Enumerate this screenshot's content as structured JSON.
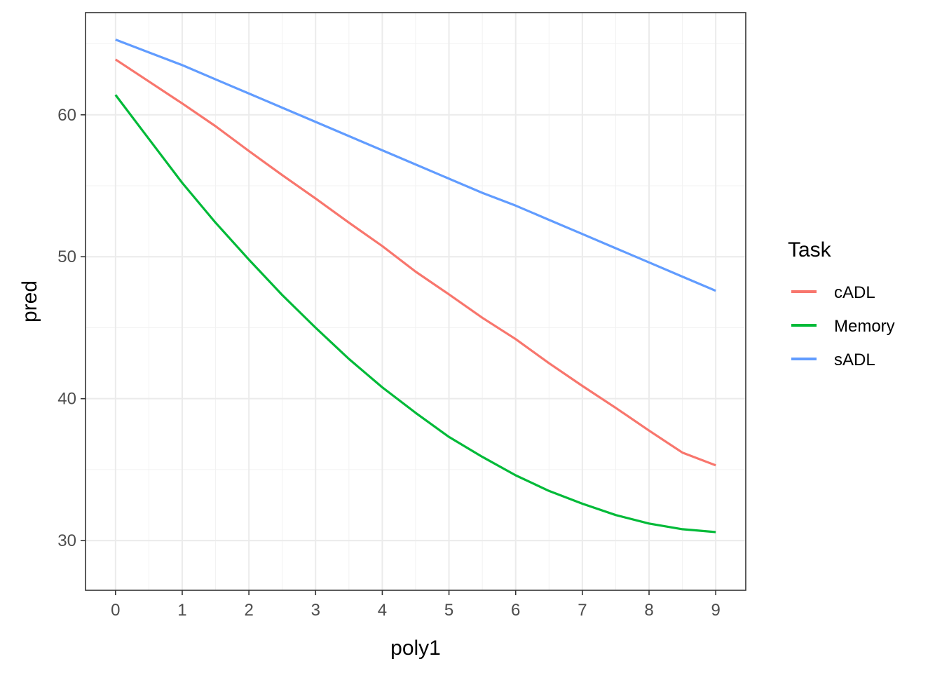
{
  "chart_data": {
    "type": "line",
    "xlabel": "poly1",
    "ylabel": "pred",
    "xlim": [
      -0.45,
      9.45
    ],
    "ylim": [
      26.5,
      67.2
    ],
    "x_ticks": [
      "0",
      "1",
      "2",
      "3",
      "4",
      "5",
      "6",
      "7",
      "8",
      "9"
    ],
    "y_ticks": [
      "30",
      "40",
      "50",
      "60"
    ],
    "grid": true,
    "legend": {
      "title": "Task",
      "position": "right"
    },
    "x": [
      0,
      0.5,
      1,
      1.5,
      2,
      2.5,
      3,
      3.5,
      4,
      4.5,
      5,
      5.5,
      6,
      6.5,
      7,
      7.5,
      8,
      8.5,
      9
    ],
    "series": [
      {
        "name": "cADL",
        "color": "#F8766D",
        "values": [
          63.9,
          62.35,
          60.8,
          59.2,
          57.45,
          55.75,
          54.1,
          52.4,
          50.75,
          48.95,
          47.35,
          45.7,
          44.2,
          42.5,
          40.9,
          39.35,
          37.75,
          36.2,
          35.3
        ]
      },
      {
        "name": "Memory",
        "color": "#00BA38",
        "values": [
          61.4,
          58.3,
          55.2,
          52.4,
          49.8,
          47.3,
          45.0,
          42.8,
          40.8,
          39.0,
          37.3,
          35.9,
          34.6,
          33.5,
          32.6,
          31.8,
          31.2,
          30.8,
          30.6
        ]
      },
      {
        "name": "sADL",
        "color": "#619CFF",
        "values": [
          65.3,
          64.4,
          63.5,
          62.5,
          61.5,
          60.5,
          59.5,
          58.5,
          57.5,
          56.5,
          55.5,
          54.5,
          53.6,
          52.6,
          51.6,
          50.6,
          49.6,
          48.6,
          47.6
        ]
      }
    ]
  }
}
